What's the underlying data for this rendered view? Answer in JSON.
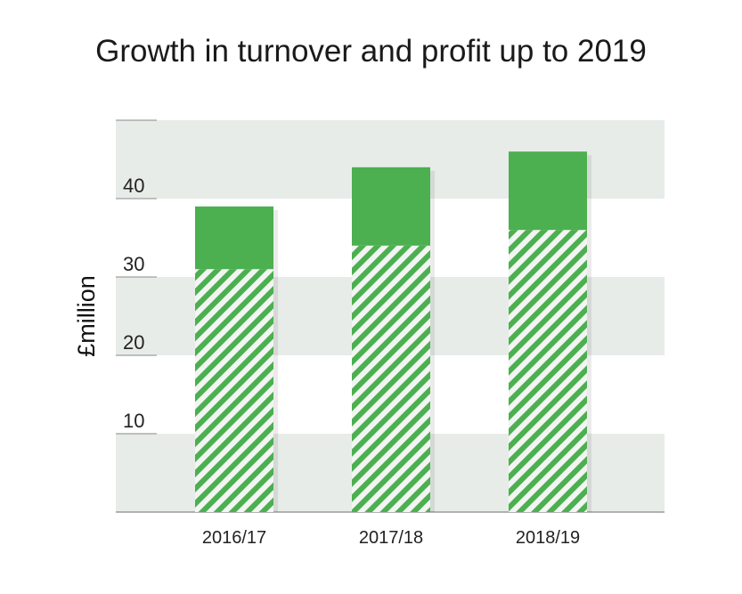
{
  "chart_data": {
    "type": "bar",
    "stacked": true,
    "title": "Growth in turnover and profit up to 2019",
    "ylabel": "£million",
    "xlabel": "",
    "categories": [
      "2016/17",
      "2017/18",
      "2018/19"
    ],
    "series": [
      {
        "values": [
          31,
          34,
          36
        ],
        "pattern": "diagonal-hatch",
        "color": "#4caf50"
      },
      {
        "values": [
          8,
          10,
          10
        ],
        "pattern": "solid",
        "color": "#4caf50"
      }
    ],
    "ylim": [
      0,
      50
    ],
    "yticks": [
      10,
      20,
      30,
      40
    ],
    "grid": "alternating horizontal bands",
    "band_color": "#e8ece9",
    "axis_color": "#888888"
  }
}
